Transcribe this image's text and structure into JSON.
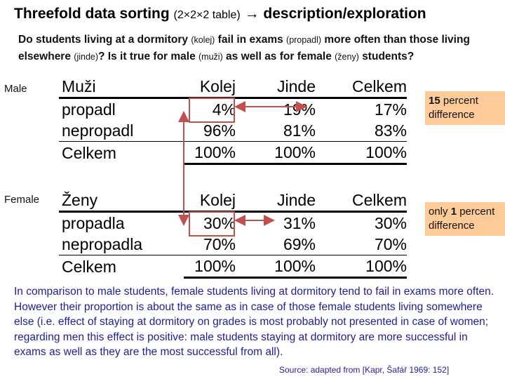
{
  "title": {
    "main": "Threefold data sorting",
    "paren": "(2×2×2 table)",
    "arrow": "→ description/exploration"
  },
  "question": {
    "p1": "Do students living at a dormitory",
    "k1": "(kolej)",
    "p2": "fail in exams",
    "k2": "(propadl)",
    "p3": "more often than those living elsewhere",
    "k3": "(jinde)",
    "p4": "? Is it true for male",
    "k4": "(muži)",
    "p5": "as well as for female",
    "k5": "(ženy)",
    "p6": "students?"
  },
  "groups": {
    "male": "Male",
    "female": "Female"
  },
  "male_table": {
    "header": [
      "Muži",
      "Kolej",
      "Jinde",
      "Celkem"
    ],
    "rows": [
      [
        "propadl",
        "4%",
        "19%",
        "17%"
      ],
      [
        "nepropadl",
        "96%",
        "81%",
        "83%"
      ]
    ],
    "total": [
      "Celkem",
      "100%",
      "100%",
      "100%"
    ]
  },
  "female_table": {
    "header": [
      "Ženy",
      "Kolej",
      "Jinde",
      "Celkem"
    ],
    "rows": [
      [
        "propadla",
        "30%",
        "31%",
        "30%"
      ],
      [
        "nepropadla",
        "70%",
        "69%",
        "70%"
      ]
    ],
    "total": [
      "Celkem",
      "100%",
      "100%",
      "100%"
    ]
  },
  "notes": {
    "male": {
      "value": "15",
      "text": "percent difference"
    },
    "female": {
      "prefix": "only",
      "value": "1",
      "text": "percent difference"
    }
  },
  "conclusion": "In comparison to male students, female students living at dormitory tend to fail in exams more often. However their proportion is about the same as in case of those female students living somewhere else (i.e. effect of staying at dormitory on grades is most probably not presented in case of women; regarding men this effect is positive: male students staying at dormitory are more successful in exams as well as they are the most successful from all).",
  "source": "Source: adapted from [Kapr, Šafář 1969: 152]",
  "colors": {
    "highlight": "#c0504d",
    "note_bg": "#ffcc99",
    "conclusion": "#1e1e96"
  }
}
